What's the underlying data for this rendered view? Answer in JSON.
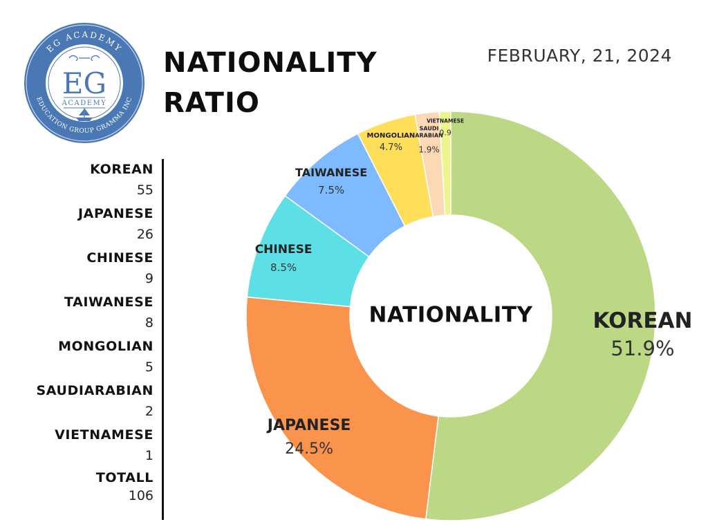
{
  "logo": {
    "ring_top_text": "EG ACADEMY",
    "ring_bottom_text": "EDUCATION GROUP GRAMMA INC",
    "monogram": "EG",
    "sub_text": "ACADEMY",
    "ring_color": "#4a78b4",
    "inner_color": "#ffffff"
  },
  "header": {
    "title_line1": "NATIONALITY",
    "title_line2": "RATIO",
    "date": "FEBRUARY, 21, 2024"
  },
  "legend": {
    "items": [
      {
        "name": "KOREAN",
        "value": "55"
      },
      {
        "name": "JAPANESE",
        "value": "26"
      },
      {
        "name": "CHINESE",
        "value": "9"
      },
      {
        "name": "TAIWANESE",
        "value": "8"
      },
      {
        "name": "MONGOLIAN",
        "value": "5"
      },
      {
        "name": "SAUDIARABIAN",
        "value": "2"
      },
      {
        "name": "VIETNAMESE",
        "value": "1"
      }
    ],
    "total": {
      "name": "TOTALL",
      "value": "106"
    }
  },
  "chart_data": {
    "type": "pie",
    "donut": true,
    "center_label": "NATIONALITY",
    "slices": [
      {
        "label": "KOREAN",
        "value": 51.9,
        "pct_label": "51.9%",
        "color": "#bcd885"
      },
      {
        "label": "JAPANESE",
        "value": 24.5,
        "pct_label": "24.5%",
        "color": "#fa934c"
      },
      {
        "label": "CHINESE",
        "value": 8.5,
        "pct_label": "8.5%",
        "color": "#5ce0e6"
      },
      {
        "label": "TAIWANESE",
        "value": 7.5,
        "pct_label": "7.5%",
        "color": "#7dbaff"
      },
      {
        "label": "MONGOLIAN",
        "value": 4.7,
        "pct_label": "4.7%",
        "color": "#ffde59"
      },
      {
        "label_lines": [
          "SAUDI",
          "ARABIAN"
        ],
        "value": 1.9,
        "pct_label": "1.9%",
        "color": "#fdd8b5"
      },
      {
        "label": "VIETNAMESE",
        "value": 0.9,
        "pct_label": "0.9",
        "color": "#edf58e"
      }
    ]
  }
}
